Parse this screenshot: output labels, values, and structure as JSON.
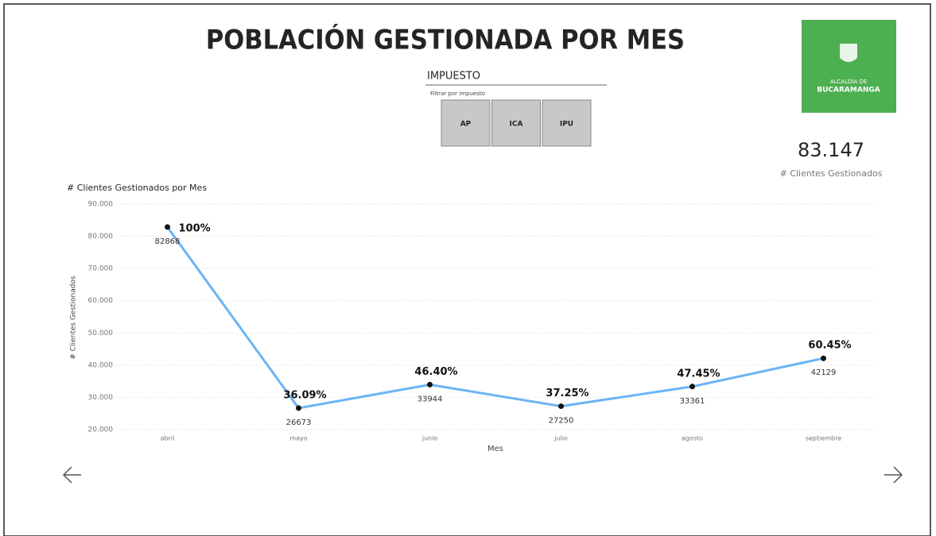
{
  "header": {
    "title": "POBLACIÓN GESTIONADA POR MES"
  },
  "slicer": {
    "title": "IMPUESTO",
    "subtitle": "Filtrar por impuesto",
    "options": [
      "AP",
      "ICA",
      "IPU"
    ]
  },
  "logo": {
    "line1": "ALCALDÍA DE",
    "line2": "BUCARAMANGA"
  },
  "card": {
    "value": "83.147",
    "label": "# Clientes Gestionados"
  },
  "chart_data": {
    "type": "line",
    "title": "# Clientes Gestionados por Mes",
    "x_label": "Mes",
    "y_label": "# Clientes Gestionados",
    "categories": [
      "abril",
      "mayo",
      "junio",
      "julio",
      "agosto",
      "septiembre"
    ],
    "series": [
      {
        "name": "# Clientes Gestionados",
        "color": "#6cb4f7",
        "values": [
          82868,
          26673,
          33944,
          27250,
          33361,
          42129
        ]
      }
    ],
    "annotations": [
      "100%",
      "36.09%",
      "46.40%",
      "37.25%",
      "47.45%",
      "60.45%"
    ],
    "ylim": [
      20000,
      90000
    ],
    "yticks": [
      {
        "value": 20000,
        "label": "20.000"
      },
      {
        "value": 30000,
        "label": "30.000"
      },
      {
        "value": 40000,
        "label": "40.000"
      },
      {
        "value": 50000,
        "label": "50.000"
      },
      {
        "value": 60000,
        "label": "60.000"
      },
      {
        "value": 70000,
        "label": "70.000"
      },
      {
        "value": 80000,
        "label": "80.000"
      },
      {
        "value": 90000,
        "label": "90.000"
      }
    ],
    "grid": true
  }
}
